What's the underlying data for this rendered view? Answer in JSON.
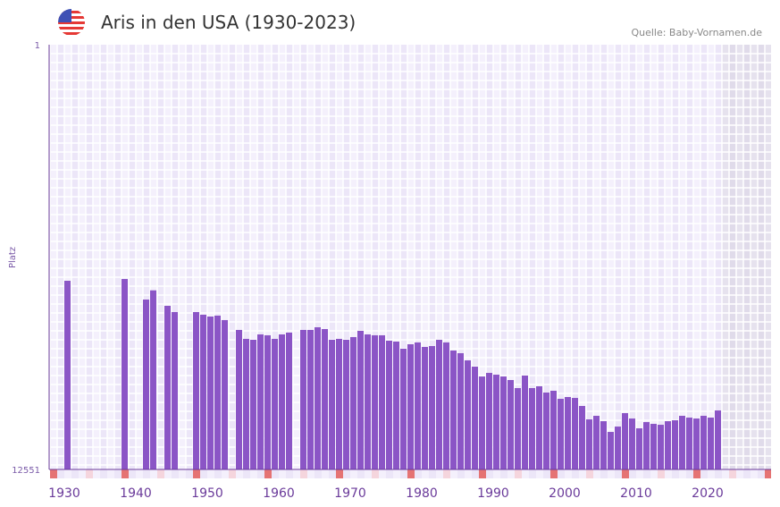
{
  "header": {
    "title": "Aris in den USA (1930-2023)",
    "source": "Quelle: Baby-Vornamen.de",
    "flag_icon": "us-flag-icon"
  },
  "colors": {
    "bar": "#8b55c6",
    "axis": "#6a3a9a",
    "decade_mark": "#e57373",
    "half_decade_mark": "#f5d5dd",
    "no_data": "#e3dfec"
  },
  "chart_data": {
    "type": "bar",
    "title": "Aris in den USA (1930-2023)",
    "xlabel": "",
    "ylabel": "Platz",
    "y_inverted": true,
    "ylim": [
      1,
      12551
    ],
    "y_ticks": [
      "1",
      "12551"
    ],
    "xlim": [
      1928,
      2029
    ],
    "x_ticks": [
      1930,
      1940,
      1950,
      1960,
      1970,
      1980,
      1990,
      2000,
      2010,
      2020
    ],
    "no_data_from": 2022,
    "grid": true,
    "x": [
      1930,
      1938,
      1941,
      1942,
      1944,
      1945,
      1948,
      1949,
      1950,
      1951,
      1952,
      1954,
      1955,
      1956,
      1957,
      1958,
      1959,
      1960,
      1961,
      1963,
      1964,
      1965,
      1966,
      1967,
      1968,
      1969,
      1970,
      1971,
      1972,
      1973,
      1974,
      1975,
      1976,
      1977,
      1978,
      1979,
      1980,
      1981,
      1982,
      1983,
      1984,
      1985,
      1986,
      1987,
      1988,
      1989,
      1990,
      1991,
      1992,
      1993,
      1994,
      1995,
      1996,
      1997,
      1998,
      1999,
      2000,
      2001,
      2002,
      2003,
      2004,
      2005,
      2006,
      2007,
      2008,
      2009,
      2010,
      2011,
      2012,
      2013,
      2014,
      2015,
      2016,
      2017,
      2018,
      2019,
      2020,
      2021
    ],
    "values": [
      6976,
      6923,
      7531,
      7259,
      7716,
      7901,
      7901,
      7980,
      8033,
      8006,
      8138,
      8429,
      8693,
      8720,
      8561,
      8587,
      8693,
      8561,
      8508,
      8429,
      8429,
      8350,
      8403,
      8720,
      8693,
      8720,
      8640,
      8455,
      8561,
      8587,
      8587,
      8746,
      8773,
      8984,
      8852,
      8799,
      8931,
      8905,
      8720,
      8799,
      9037,
      9116,
      9328,
      9513,
      9804,
      9698,
      9751,
      9804,
      9909,
      10147,
      9777,
      10147,
      10094,
      10279,
      10226,
      10464,
      10411,
      10438,
      10675,
      11072,
      10966,
      11125,
      11442,
      11284,
      10887,
      11046,
      11336,
      11152,
      11204,
      11231,
      11125,
      11098,
      10966,
      11019,
      11046,
      10966,
      11019,
      10808
    ]
  }
}
